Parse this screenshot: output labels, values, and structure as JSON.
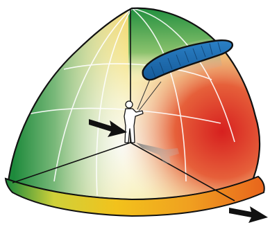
{
  "diagram": {
    "type": "kite-wind-window",
    "zones": [
      {
        "name": "edge-of-window",
        "color": "#2e9a46"
      },
      {
        "name": "neutral-zone",
        "color": "#f6f2b8"
      },
      {
        "name": "intermediate-zone",
        "color": "#f2cc2a"
      },
      {
        "name": "power-zone",
        "color": "#e0302c"
      }
    ],
    "kite": {
      "color": "#1f6fb4",
      "outline": "#1a1a1a"
    },
    "rider": {
      "color": "#ffffff",
      "shadow": "#8c8c8c"
    },
    "arrows": [
      {
        "name": "wind-arrow-incoming",
        "direction": "down-right",
        "color": "#111111"
      },
      {
        "name": "wind-arrow-downwind",
        "direction": "down-right",
        "color": "#111111"
      }
    ]
  }
}
